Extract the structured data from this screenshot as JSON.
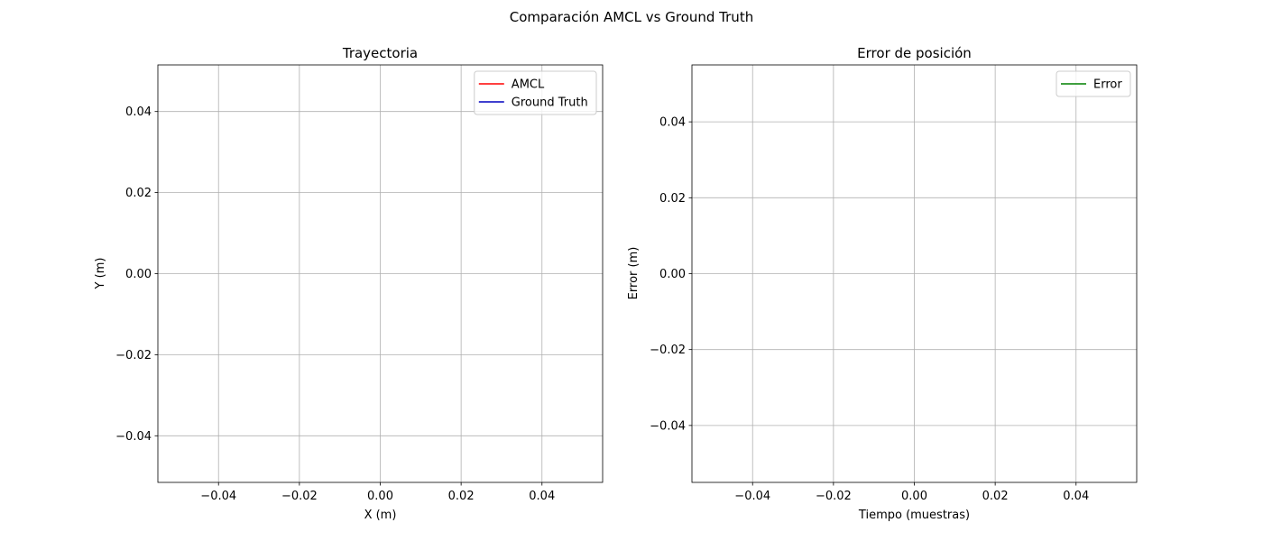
{
  "figure": {
    "suptitle": "Comparación AMCL vs Ground Truth"
  },
  "chart_data": [
    {
      "type": "line",
      "title": "Trayectoria",
      "xlabel": "X (m)",
      "ylabel": "Y (m)",
      "xlim": [
        -0.055,
        0.055
      ],
      "ylim": [
        -0.0515,
        0.0515
      ],
      "xticks": [
        -0.04,
        -0.02,
        0.0,
        0.02,
        0.04
      ],
      "yticks": [
        -0.04,
        -0.02,
        0.0,
        0.02,
        0.04
      ],
      "xtick_labels": [
        "−0.04",
        "−0.02",
        "0.00",
        "0.02",
        "0.04"
      ],
      "ytick_labels": [
        "−0.04",
        "−0.02",
        "0.00",
        "0.02",
        "0.04"
      ],
      "grid": true,
      "legend": "upper-right",
      "series": [
        {
          "name": "AMCL",
          "color": "#ff0000",
          "x": [],
          "y": []
        },
        {
          "name": "Ground Truth",
          "color": "#0000bf",
          "x": [],
          "y": []
        }
      ]
    },
    {
      "type": "line",
      "title": "Error de posición",
      "xlabel": "Tiempo (muestras)",
      "ylabel": "Error (m)",
      "xlim": [
        -0.055,
        0.055
      ],
      "ylim": [
        -0.055,
        0.055
      ],
      "xticks": [
        -0.04,
        -0.02,
        0.0,
        0.02,
        0.04
      ],
      "yticks": [
        -0.04,
        -0.02,
        0.0,
        0.02,
        0.04
      ],
      "xtick_labels": [
        "−0.04",
        "−0.02",
        "0.00",
        "0.02",
        "0.04"
      ],
      "ytick_labels": [
        "−0.04",
        "−0.02",
        "0.00",
        "0.02",
        "0.04"
      ],
      "grid": true,
      "legend": "upper-right",
      "series": [
        {
          "name": "Error",
          "color": "#008000",
          "x": [],
          "y": []
        }
      ]
    }
  ]
}
